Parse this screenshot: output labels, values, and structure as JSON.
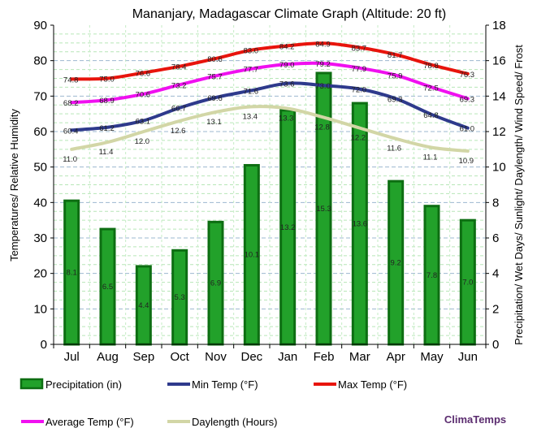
{
  "chart_data": {
    "type": "bar+line",
    "title": "Mananjary, Madagascar Climate Graph (Altitude: 20 ft)",
    "ylabel_left": "Temperatures/ Relative Humidity",
    "ylabel_right": "Precipitation/ Wet Days/ Sunlight/ Daylength/ Wind Speed/ Frost",
    "categories": [
      "Jul",
      "Aug",
      "Sep",
      "Oct",
      "Nov",
      "Dec",
      "Jan",
      "Feb",
      "Mar",
      "Apr",
      "May",
      "Jun"
    ],
    "ylim_left": [
      0,
      90
    ],
    "yticks_left": [
      "0",
      "10",
      "20",
      "30",
      "40",
      "50",
      "60",
      "70",
      "80",
      "90"
    ],
    "ylim_right": [
      0,
      18
    ],
    "yticks_right": [
      "0",
      "2",
      "4",
      "6",
      "8",
      "10",
      "12",
      "14",
      "16",
      "18"
    ],
    "grid": true,
    "series": [
      {
        "name": "Precipitation (in)",
        "type": "bar",
        "axis": "right",
        "color": "#22a12a",
        "edge": "#0d6e12",
        "values": [
          8.1,
          6.5,
          4.4,
          5.3,
          6.9,
          10.1,
          13.2,
          15.3,
          13.6,
          9.2,
          7.8,
          7.0
        ],
        "labels": [
          "8.1",
          "6.5",
          "4.4",
          "5.3",
          "6.9",
          "10.1",
          "13.2",
          "15.3",
          "13.6",
          "9.2",
          "7.8",
          "7.0"
        ]
      },
      {
        "name": "Min Temp (°F)",
        "type": "line",
        "axis": "left",
        "color": "#2e3a8c",
        "values": [
          60.4,
          61.2,
          63.1,
          66.7,
          69.6,
          71.6,
          73.6,
          73.0,
          72.0,
          69.3,
          64.8,
          61.0
        ],
        "labels": [
          "60.4",
          "61.2",
          "63.1",
          "66.7",
          "69.6",
          "71.6",
          "73.6",
          "73.0",
          "72.0",
          "69.3",
          "64.8",
          "61.0"
        ]
      },
      {
        "name": "Max Temp (°F)",
        "type": "line",
        "axis": "left",
        "color": "#e8140c",
        "values": [
          74.8,
          75.0,
          76.6,
          78.4,
          80.6,
          83.0,
          84.2,
          84.9,
          83.7,
          81.7,
          78.8,
          76.3
        ],
        "labels": [
          "74.8",
          "75.0",
          "76.6",
          "78.4",
          "80.6",
          "83.0",
          "84.2",
          "84.9",
          "83.7",
          "81.7",
          "78.8",
          "76.3"
        ]
      },
      {
        "name": "Average Temp (°F)",
        "type": "line",
        "axis": "left",
        "color": "#f010f0",
        "values": [
          68.2,
          68.9,
          70.6,
          73.2,
          75.7,
          77.7,
          79.0,
          79.2,
          77.9,
          75.9,
          72.5,
          69.3
        ],
        "labels": [
          "68.2",
          "68.9",
          "70.6",
          "73.2",
          "75.7",
          "77.7",
          "79.0",
          "79.2",
          "77.9",
          "75.9",
          "72.5",
          "69.3"
        ]
      },
      {
        "name": "Daylength (Hours)",
        "type": "line",
        "axis": "right",
        "color": "#d2d6a6",
        "values": [
          11.0,
          11.4,
          12.0,
          12.6,
          13.1,
          13.4,
          13.3,
          12.8,
          12.2,
          11.6,
          11.1,
          10.9
        ],
        "labels": [
          "11.0",
          "11.4",
          "12.0",
          "12.6",
          "13.1",
          "13.4",
          "13.3",
          "12.8",
          "12.2",
          "11.6",
          "11.1",
          "10.9"
        ]
      }
    ],
    "legend": [
      {
        "label": "Precipitation (in)",
        "kind": "bar",
        "color": "#22a12a"
      },
      {
        "label": "Min Temp (°F)",
        "kind": "line",
        "color": "#2e3a8c"
      },
      {
        "label": "Max Temp (°F)",
        "kind": "line",
        "color": "#e8140c"
      },
      {
        "label": "Average Temp (°F)",
        "kind": "line",
        "color": "#f010f0"
      },
      {
        "label": "Daylength (Hours)",
        "kind": "line",
        "color": "#d2d6a6"
      }
    ],
    "watermark": "ClimaTemps"
  }
}
